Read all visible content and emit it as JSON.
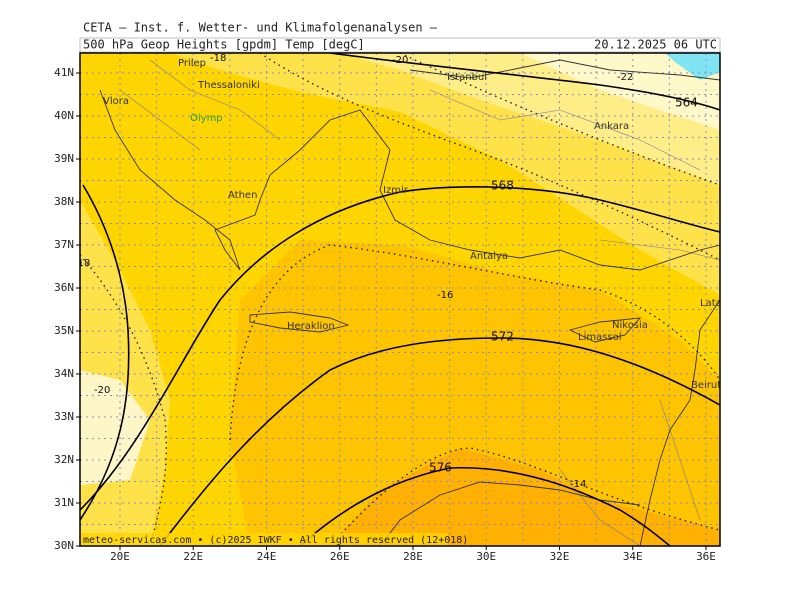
{
  "header": {
    "source": "CETA — Inst. f. Wetter- und Klimafolgenanalysen —",
    "field": "500 hPa Geop Heights [gpdm] Temp [degC]",
    "valid": "20.12.2025 06 UTC"
  },
  "axes": {
    "lat_labels": [
      "41N",
      "40N",
      "39N",
      "38N",
      "37N",
      "36N",
      "35N",
      "34N",
      "33N",
      "32N",
      "31N",
      "30N"
    ],
    "lon_labels": [
      "20E",
      "22E",
      "24E",
      "26E",
      "28E",
      "30E",
      "32E",
      "34E",
      "36E"
    ]
  },
  "places": [
    "Prilep",
    "Thessaloniki",
    "Vlora",
    "Olymp",
    "Athen",
    "Izmir",
    "Istanbul",
    "Ankara",
    "Antalya",
    "Heraklion",
    "Nikosia",
    "Limassol",
    "Latakia",
    "Beirut"
  ],
  "height_labels": [
    "564",
    "568",
    "572",
    "576"
  ],
  "temp_labels": [
    "-18",
    "-20",
    "-22",
    "-18",
    "-16",
    "-20",
    "-14"
  ],
  "footer": "meteo-servicas.com • (c)2025 IWKF • All rights reserved (12+018)"
}
